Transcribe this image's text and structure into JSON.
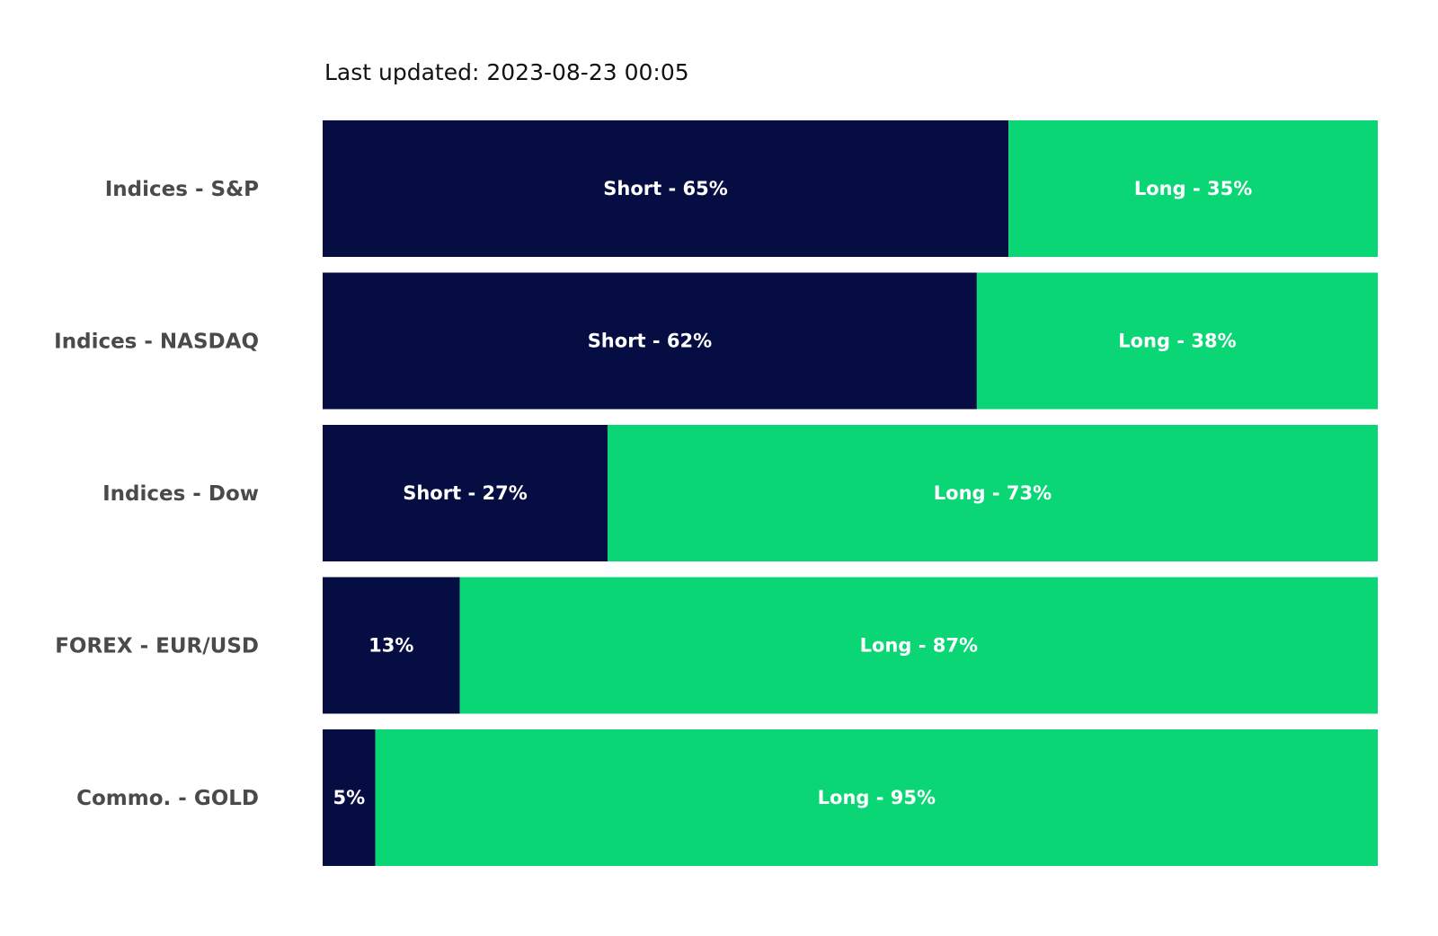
{
  "header": {
    "last_updated": "Last updated: 2023-08-23 00:05"
  },
  "colors": {
    "short": "#060D43",
    "long": "#0BD676",
    "category_text": "#4a4a4a",
    "segment_text": "#ffffff"
  },
  "chart_data": {
    "type": "bar",
    "orientation": "horizontal",
    "stacked": true,
    "categories": [
      "Indices - S&P",
      "Indices - NASDAQ",
      "Indices - Dow",
      "FOREX - EUR/USD",
      "Commo. - GOLD"
    ],
    "series": [
      {
        "name": "Short",
        "values": [
          65,
          62,
          27,
          13,
          5
        ],
        "labels": [
          "Short - 65%",
          "Short - 62%",
          "Short - 27%",
          "13%",
          "5%"
        ]
      },
      {
        "name": "Long",
        "values": [
          35,
          38,
          73,
          87,
          95
        ],
        "labels": [
          "Long - 35%",
          "Long - 38%",
          "Long - 73%",
          "Long - 87%",
          "Long - 95%"
        ]
      }
    ],
    "xlim": [
      0,
      100
    ],
    "grid": false,
    "legend": "none"
  }
}
